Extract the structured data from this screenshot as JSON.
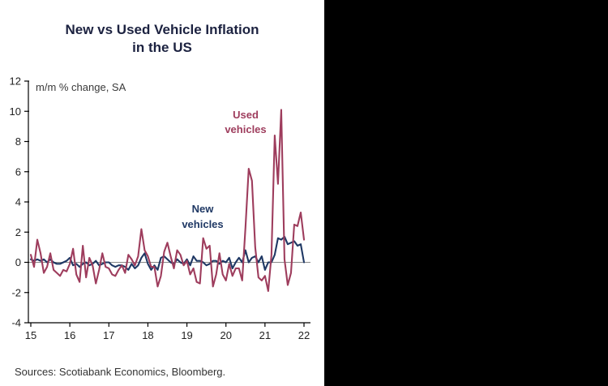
{
  "page": {
    "panel_background": "#ffffff",
    "outside_background": "#000000"
  },
  "title": {
    "line1": "New vs Used Vehicle Inflation",
    "line2": "in the US"
  },
  "source": "Sources: Scotiabank Economics, Bloomberg.",
  "chart_data": {
    "type": "line",
    "title": "New vs Used Vehicle Inflation in the US",
    "subtitle": "m/m % change, SA",
    "xlabel": "",
    "ylabel": "",
    "ylim": [
      -4,
      12
    ],
    "y_ticks": [
      -4,
      -2,
      0,
      2,
      4,
      6,
      8,
      10,
      12
    ],
    "x_tick_labels": [
      "15",
      "16",
      "17",
      "18",
      "19",
      "20",
      "21",
      "22"
    ],
    "x_unit": "months, Jan 2015 - Jan 2022",
    "grid": false,
    "zero_line": true,
    "legend_position": "inline-annotations",
    "series": [
      {
        "name": "New vehicles",
        "label_lines": [
          "New",
          "vehicles"
        ],
        "color": "#1f3864",
        "values": [
          0.2,
          0.1,
          0.2,
          0.1,
          0.2,
          0.0,
          0.2,
          0.0,
          -0.1,
          -0.1,
          0.0,
          0.1,
          0.3,
          -0.2,
          -0.1,
          -0.3,
          -0.1,
          0.0,
          -0.2,
          -0.1,
          0.1,
          -0.2,
          -0.1,
          0.0,
          0.0,
          -0.2,
          -0.3,
          -0.2,
          -0.2,
          -0.3,
          -0.5,
          -0.1,
          -0.4,
          -0.2,
          0.3,
          0.6,
          -0.1,
          -0.5,
          -0.2,
          -0.5,
          0.3,
          0.4,
          0.2,
          0.0,
          -0.1,
          0.2,
          0.0,
          -0.1,
          0.2,
          -0.2,
          0.4,
          0.1,
          0.1,
          0.0,
          -0.2,
          -0.1,
          0.1,
          0.1,
          -0.1,
          0.1,
          0.0,
          0.3,
          -0.4,
          0.0,
          0.3,
          0.0,
          0.8,
          0.0,
          0.3,
          0.4,
          0.0,
          0.4,
          -0.5,
          0.0,
          0.0,
          0.5,
          1.6,
          1.5,
          1.7,
          1.2,
          1.3,
          1.4,
          1.1,
          1.2,
          0.0
        ]
      },
      {
        "name": "Used vehicles",
        "label_lines": [
          "Used",
          "vehicles"
        ],
        "color": "#9e3d5d",
        "values": [
          0.5,
          -0.3,
          1.5,
          0.6,
          -0.7,
          -0.3,
          0.6,
          -0.5,
          -0.7,
          -0.9,
          -0.5,
          -0.6,
          -0.1,
          0.9,
          -0.8,
          -1.3,
          1.1,
          -1.0,
          0.3,
          -0.2,
          -1.4,
          -0.5,
          0.6,
          -0.3,
          -0.4,
          -0.8,
          -0.9,
          -0.5,
          -0.2,
          -0.7,
          0.5,
          0.2,
          -0.2,
          0.4,
          2.2,
          0.8,
          0.4,
          -0.3,
          -0.3,
          -1.6,
          -0.9,
          0.7,
          1.3,
          0.4,
          -0.4,
          0.8,
          0.5,
          -0.2,
          0.1,
          -0.8,
          -0.4,
          -1.3,
          -1.4,
          1.6,
          0.9,
          1.1,
          -1.6,
          -0.8,
          0.6,
          -0.8,
          -1.2,
          -0.1,
          -0.9,
          -0.4,
          -0.4,
          -1.2,
          2.3,
          6.2,
          5.4,
          1.0,
          -1.0,
          -1.2,
          -0.9,
          -1.9,
          0.5,
          8.4,
          5.2,
          10.1,
          0.2,
          -1.5,
          -0.7,
          2.5,
          2.4,
          3.3,
          1.5
        ]
      }
    ]
  }
}
